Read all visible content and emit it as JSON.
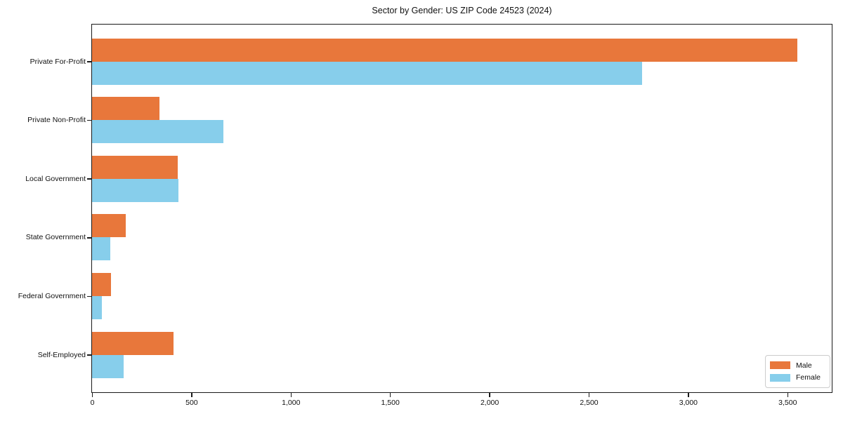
{
  "title": "Sector by Gender: US ZIP Code 24523 (2024)",
  "colors": {
    "male": "#E8773B",
    "female": "#87CEEB",
    "axis": "#1a1a1a",
    "legend_border": "#cccccc",
    "background": "#ffffff"
  },
  "legend": {
    "position": "lower right",
    "items": [
      {
        "label": "Male",
        "color": "#E8773B"
      },
      {
        "label": "Female",
        "color": "#87CEEB"
      }
    ]
  },
  "chart_data": {
    "type": "bar",
    "orientation": "horizontal",
    "title": "Sector by Gender: US ZIP Code 24523 (2024)",
    "xlabel": "",
    "ylabel": "",
    "categories": [
      "Private For-Profit",
      "Private Non-Profit",
      "Local Government",
      "State Government",
      "Federal Government",
      "Self-Employed"
    ],
    "series": [
      {
        "name": "Male",
        "color": "#E8773B",
        "values": [
          3550,
          340,
          430,
          170,
          95,
          410
        ]
      },
      {
        "name": "Female",
        "color": "#87CEEB",
        "values": [
          2770,
          660,
          435,
          90,
          50,
          160
        ]
      }
    ],
    "xlim": [
      0,
      3720
    ],
    "x_ticks": [
      0,
      500,
      1000,
      1500,
      2000,
      2500,
      3000,
      3500
    ],
    "x_tick_labels": [
      "0",
      "500",
      "1,000",
      "1,500",
      "2,000",
      "2,500",
      "3,000",
      "3,500"
    ],
    "grid": false,
    "legend_position": "lower right"
  }
}
